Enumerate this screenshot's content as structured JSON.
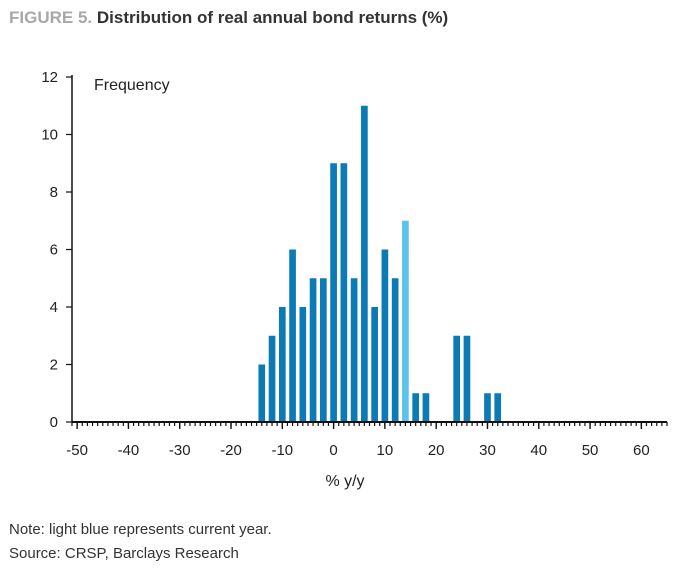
{
  "figure": {
    "label": "FIGURE 5.",
    "title": "Distribution of real annual bond returns (%)"
  },
  "notes": {
    "note": "Note: light blue represents current year.",
    "source": "Source: CRSP, Barclays Research"
  },
  "colors": {
    "bar": "#0b7ab5",
    "highlight": "#5bc3ee",
    "axis": "#111111",
    "label_gray": "#a8a8a8"
  },
  "chart_data": {
    "type": "bar",
    "title": "Distribution of real annual bond returns (%)",
    "xlabel": "% y/y",
    "ylabel": "Frequency",
    "xlim": [
      -51,
      65
    ],
    "ylim": [
      0,
      12
    ],
    "xticks": [
      -50,
      -40,
      -30,
      -20,
      -10,
      0,
      10,
      20,
      30,
      40,
      50,
      60
    ],
    "yticks": [
      0,
      2,
      4,
      6,
      8,
      10,
      12
    ],
    "grid": false,
    "bin_width": 1.3,
    "series": [
      {
        "x": [
          -14,
          -12,
          -10,
          -8,
          -6,
          -4,
          -2,
          0,
          2,
          4,
          6,
          8,
          10,
          12,
          14,
          16,
          18,
          24,
          26,
          30,
          32
        ],
        "values": [
          2,
          3,
          4,
          6,
          4,
          5,
          5,
          9,
          9,
          5,
          11,
          4,
          6,
          5,
          7,
          1,
          1,
          3,
          3,
          1,
          1
        ],
        "highlight_x": 14
      }
    ]
  }
}
